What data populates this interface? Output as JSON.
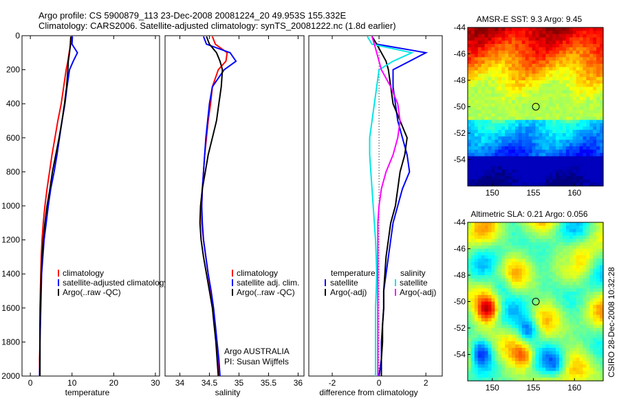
{
  "header": {
    "line1": "Argo profile: CS 5900879_113 23-Dec-2008 20081224_20 49.953S 155.332E",
    "line2": "Climatology: CARS2006. Satellite-adjusted climatology: synTS_20081222.nc (1.8d earlier)"
  },
  "credit": "CSIRO 28-Dec-2008 10:32:28",
  "colors": {
    "climatology": "#ff0000",
    "satellite": "#0000ff",
    "argo": "#000000",
    "temp_diff_satellite": "#0000ff",
    "sal_diff_satellite": "#00e5e5",
    "sal_diff_argo": "#ff00ff"
  },
  "chart_data": [
    {
      "type": "line",
      "xlabel": "temperature",
      "ylim": [
        2000,
        0
      ],
      "xlim": [
        -2,
        31
      ],
      "xticks": [
        0,
        10,
        20,
        30
      ],
      "yticks": [
        0,
        200,
        400,
        600,
        800,
        1000,
        1200,
        1400,
        1600,
        1800,
        2000
      ],
      "legend": [
        "climatology",
        "satellite-adjusted climatology",
        "Argo(..raw -QC)"
      ],
      "legend_position": "lower-right",
      "depth": [
        5,
        50,
        100,
        150,
        200,
        300,
        400,
        500,
        600,
        700,
        800,
        900,
        1000,
        1100,
        1200,
        1300,
        1400,
        1500,
        1600,
        1700,
        1800,
        1900,
        2000
      ],
      "series": [
        {
          "name": "climatology",
          "color": "#ff0000",
          "values": [
            9.8,
            9.7,
            9.3,
            9.0,
            8.6,
            8.0,
            7.4,
            6.6,
            5.9,
            5.2,
            4.6,
            4.0,
            3.5,
            3.1,
            2.8,
            2.6,
            2.5,
            2.4,
            2.3,
            2.3,
            2.3,
            2.2,
            2.2
          ]
        },
        {
          "name": "satellite-adjusted climatology",
          "color": "#0000ff",
          "values": [
            10.1,
            10.0,
            11.3,
            10.3,
            9.4,
            8.8,
            8.3,
            7.6,
            7.0,
            6.4,
            5.7,
            4.9,
            4.3,
            3.8,
            3.3,
            3.0,
            2.7,
            2.6,
            2.5,
            2.4,
            2.3,
            2.3,
            2.2
          ]
        },
        {
          "name": "Argo(..raw -QC)",
          "color": "#000000",
          "values": [
            9.7,
            9.6,
            9.4,
            9.1,
            9.0,
            8.7,
            8.2,
            7.6,
            6.9,
            6.1,
            5.3,
            4.7,
            4.0,
            3.5,
            3.1,
            2.8,
            2.6,
            2.5,
            2.4,
            2.3,
            2.3,
            2.3,
            2.3
          ]
        }
      ]
    },
    {
      "type": "line",
      "xlabel": "salinity",
      "ylim": [
        2000,
        0
      ],
      "xlim": [
        33.75,
        36.1
      ],
      "xticks": [
        34,
        34.5,
        35,
        35.5,
        36
      ],
      "legend": [
        "climatology",
        "satellite adj. clim.",
        "Argo(..raw -QC)"
      ],
      "legend_position": "lower-right",
      "annotation": [
        "Argo AUSTRALIA",
        "PI: Susan Wijffels"
      ],
      "depth": [
        5,
        50,
        100,
        150,
        200,
        300,
        400,
        500,
        600,
        700,
        800,
        900,
        1000,
        1100,
        1200,
        1300,
        1400,
        1500,
        1600,
        1700,
        1800,
        1900,
        2000
      ],
      "series": [
        {
          "name": "climatology",
          "color": "#ff0000",
          "values": [
            34.55,
            34.6,
            34.8,
            34.78,
            34.65,
            34.55,
            34.52,
            34.48,
            34.45,
            34.42,
            34.4,
            34.38,
            34.37,
            34.37,
            34.4,
            34.44,
            34.48,
            34.52,
            34.56,
            34.59,
            34.62,
            34.64,
            34.66
          ]
        },
        {
          "name": "satellite adj. clim.",
          "color": "#0000ff",
          "values": [
            34.4,
            34.45,
            34.85,
            34.95,
            34.75,
            34.55,
            34.5,
            34.47,
            34.44,
            34.42,
            34.4,
            34.38,
            34.37,
            34.38,
            34.4,
            34.44,
            34.48,
            34.53,
            34.57,
            34.6,
            34.63,
            34.66,
            34.68
          ]
        },
        {
          "name": "Argo(..raw -QC)",
          "color": "#000000",
          "values": [
            34.45,
            34.5,
            34.62,
            34.68,
            34.72,
            34.7,
            34.66,
            34.62,
            34.55,
            34.48,
            34.43,
            34.38,
            34.35,
            34.34,
            34.36,
            34.4,
            34.45,
            34.5,
            34.55,
            34.58,
            34.61,
            34.63,
            34.65
          ]
        }
      ]
    },
    {
      "type": "line",
      "xlabel": "difference from climatology",
      "ylim": [
        2000,
        0
      ],
      "xlim": [
        -3,
        2.7
      ],
      "xticks": [
        -2,
        0,
        2
      ],
      "zero_line": "dotted",
      "legend_groups": [
        {
          "title": "temperature",
          "entries": [
            "satellite",
            "Argo(-adj)"
          ]
        },
        {
          "title": "salinity",
          "entries": [
            "satellite",
            "Argo(-adj)"
          ]
        }
      ],
      "legend_position": "lower",
      "depth": [
        5,
        50,
        100,
        150,
        200,
        300,
        400,
        500,
        600,
        700,
        800,
        900,
        1000,
        1100,
        1200,
        1300,
        1400,
        1500,
        1600,
        1700,
        1800,
        1900,
        2000
      ],
      "series": [
        {
          "name": "temperature satellite",
          "color": "#0000ff",
          "values": [
            -0.3,
            -0.1,
            2.0,
            1.3,
            0.6,
            0.6,
            0.7,
            0.8,
            1.0,
            1.2,
            1.3,
            1.0,
            0.8,
            0.6,
            0.5,
            0.4,
            0.3,
            0.2,
            0.2,
            0.15,
            0.1,
            0.1,
            0.0
          ]
        },
        {
          "name": "temperature Argo(-adj)",
          "color": "#000000",
          "values": [
            -0.3,
            -0.1,
            0.1,
            0.3,
            0.4,
            0.5,
            0.6,
            0.9,
            1.2,
            1.1,
            0.9,
            0.8,
            0.7,
            0.5,
            0.4,
            0.3,
            0.25,
            0.2,
            0.2,
            0.15,
            0.15,
            0.1,
            0.1
          ]
        },
        {
          "name": "salinity satellite",
          "color": "#00e5e5",
          "values": [
            -0.5,
            -0.3,
            1.4,
            0.6,
            0.0,
            -0.1,
            -0.2,
            -0.3,
            -0.4,
            -0.4,
            -0.35,
            -0.3,
            -0.25,
            -0.2,
            -0.15,
            -0.12,
            -0.1,
            -0.12,
            -0.15,
            -0.15,
            -0.15,
            -0.15,
            -0.15
          ]
        },
        {
          "name": "salinity Argo(-adj)",
          "color": "#ff00ff",
          "values": [
            -0.3,
            -0.2,
            -0.1,
            0.0,
            0.1,
            0.5,
            0.8,
            0.9,
            0.8,
            0.6,
            0.3,
            0.1,
            0.0,
            -0.05,
            -0.05,
            -0.05,
            -0.05,
            -0.05,
            -0.05,
            -0.05,
            -0.05,
            -0.05,
            -0.05
          ]
        }
      ]
    },
    {
      "type": "heatmap",
      "title": "AMSR-E SST: 9.3 Argo: 9.45",
      "xlim": [
        147,
        163.5
      ],
      "ylim": [
        -56,
        -44
      ],
      "xticks": [
        150,
        155,
        160
      ],
      "yticks": [
        -44,
        -46,
        -48,
        -50,
        -52,
        -54
      ],
      "marker": {
        "lon": 155.3,
        "lat": -50.0
      }
    },
    {
      "type": "heatmap",
      "title": "Altimetric SLA: 0.21 Argo: 0.056",
      "xlim": [
        147,
        163.5
      ],
      "ylim": [
        -56,
        -44
      ],
      "xticks": [
        150,
        155,
        160
      ],
      "yticks": [
        -44,
        -46,
        -48,
        -50,
        -52,
        -54
      ],
      "marker": {
        "lon": 155.3,
        "lat": -50.0
      }
    }
  ]
}
